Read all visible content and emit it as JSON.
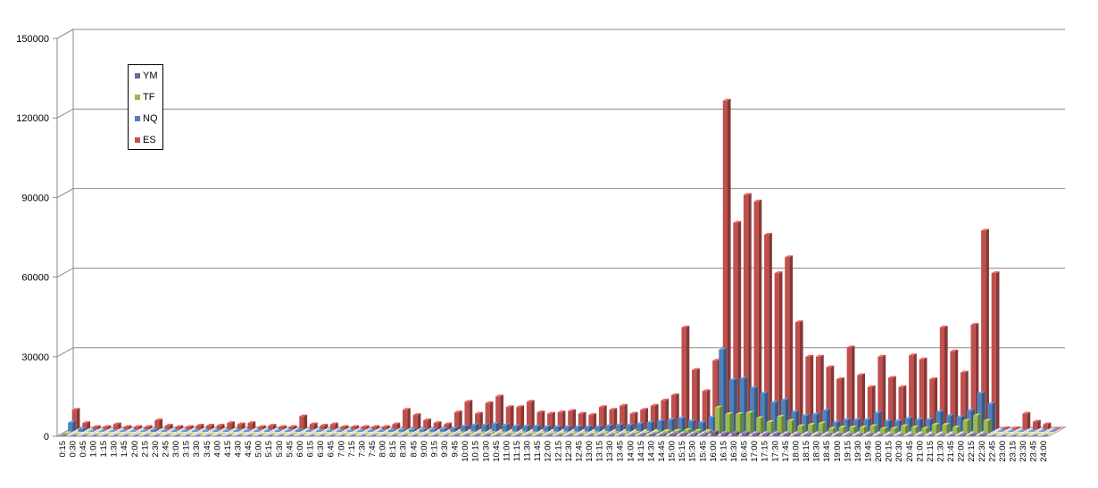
{
  "chart_data": {
    "type": "bar",
    "subtype": "3d-clustered-column",
    "ylim": [
      0,
      150000
    ],
    "yticks": [
      0,
      30000,
      60000,
      90000,
      120000,
      150000
    ],
    "grid": true,
    "legend_position": "top-left",
    "categories": [
      "0:15",
      "0:30",
      "0:45",
      "1:00",
      "1:15",
      "1:30",
      "1:45",
      "2:00",
      "2:15",
      "2:30",
      "2:45",
      "3:00",
      "3:15",
      "3:30",
      "3:45",
      "4:00",
      "4:15",
      "4:30",
      "4:45",
      "5:00",
      "5:15",
      "5:30",
      "5:45",
      "6:00",
      "6:15",
      "6:30",
      "6:45",
      "7:00",
      "7:15",
      "7:30",
      "7:45",
      "8:00",
      "8:15",
      "8:30",
      "8:45",
      "9:00",
      "9:15",
      "9:30",
      "9:45",
      "10:00",
      "10:15",
      "10:30",
      "10:45",
      "11:00",
      "11:15",
      "11:30",
      "11:45",
      "12:00",
      "12:15",
      "12:30",
      "12:45",
      "13:00",
      "13:15",
      "13:30",
      "13:45",
      "14:00",
      "14:15",
      "14:30",
      "14:45",
      "15:00",
      "15:15",
      "15:30",
      "15:45",
      "16:00",
      "16:15",
      "16:30",
      "16:45",
      "17:00",
      "17:15",
      "17:30",
      "17:45",
      "18:00",
      "18:15",
      "18:30",
      "18:45",
      "19:00",
      "19:15",
      "19:30",
      "19:45",
      "20:00",
      "20:15",
      "20:30",
      "20:45",
      "21:00",
      "21:15",
      "21:30",
      "21:45",
      "22:00",
      "22:15",
      "22:30",
      "22:45",
      "23:00",
      "23:15",
      "23:30",
      "23:45",
      "24:00"
    ],
    "series": [
      {
        "name": "YM",
        "color": "#7d60a0",
        "values": [
          200,
          100,
          50,
          50,
          50,
          50,
          50,
          50,
          100,
          50,
          50,
          50,
          50,
          50,
          50,
          50,
          50,
          50,
          50,
          50,
          50,
          50,
          100,
          50,
          50,
          50,
          50,
          50,
          50,
          50,
          50,
          100,
          100,
          100,
          100,
          100,
          100,
          100,
          200,
          200,
          200,
          300,
          200,
          200,
          200,
          200,
          200,
          200,
          200,
          200,
          200,
          200,
          300,
          300,
          300,
          300,
          400,
          500,
          600,
          700,
          800,
          700,
          600,
          1500,
          1000,
          1200,
          1100,
          900,
          800,
          900,
          700,
          500,
          500,
          400,
          400,
          500,
          400,
          400,
          400,
          300,
          300,
          300,
          300,
          300,
          300,
          300,
          300,
          400,
          500,
          500,
          50,
          50,
          50,
          50,
          50,
          50
        ]
      },
      {
        "name": "TF",
        "color": "#98b954",
        "values": [
          300,
          100,
          50,
          50,
          50,
          50,
          50,
          50,
          100,
          50,
          50,
          50,
          50,
          50,
          50,
          50,
          50,
          50,
          50,
          50,
          50,
          50,
          100,
          50,
          50,
          50,
          50,
          50,
          50,
          50,
          50,
          100,
          200,
          200,
          200,
          200,
          200,
          200,
          300,
          300,
          300,
          400,
          300,
          300,
          300,
          300,
          300,
          300,
          300,
          300,
          300,
          300,
          400,
          400,
          400,
          500,
          600,
          800,
          1000,
          1200,
          1500,
          1200,
          1000,
          10000,
          7500,
          7500,
          8000,
          6000,
          4500,
          6500,
          5000,
          3000,
          3500,
          4000,
          2000,
          2500,
          2500,
          2500,
          3000,
          2000,
          2000,
          3000,
          2500,
          2000,
          3500,
          3500,
          2500,
          5000,
          7000,
          5000,
          50,
          50,
          50,
          50,
          50,
          50
        ]
      },
      {
        "name": "NQ",
        "color": "#4f81bd",
        "values": [
          3500,
          1000,
          200,
          200,
          200,
          200,
          200,
          200,
          700,
          300,
          300,
          300,
          300,
          300,
          300,
          300,
          300,
          300,
          300,
          300,
          300,
          300,
          500,
          300,
          300,
          300,
          300,
          300,
          300,
          300,
          300,
          500,
          700,
          800,
          800,
          800,
          1000,
          1200,
          2000,
          2500,
          2500,
          3000,
          2500,
          2000,
          2000,
          2000,
          1800,
          1800,
          1800,
          1800,
          1800,
          1800,
          2200,
          2500,
          2500,
          3000,
          3500,
          4000,
          4500,
          5000,
          4000,
          3500,
          5500,
          31000,
          19500,
          20000,
          16500,
          14500,
          11000,
          12000,
          7500,
          6000,
          6500,
          8000,
          3500,
          4500,
          4500,
          4500,
          7000,
          4000,
          4000,
          5000,
          4500,
          4500,
          7500,
          6000,
          5500,
          8000,
          14500,
          10500,
          200,
          200,
          200,
          200,
          200,
          200
        ]
      },
      {
        "name": "ES",
        "color": "#c0504d",
        "values": [
          7500,
          2500,
          1000,
          1000,
          2000,
          1000,
          1000,
          1000,
          3500,
          1500,
          1000,
          1000,
          1500,
          1500,
          1500,
          2500,
          2000,
          2500,
          1000,
          1500,
          1000,
          1000,
          5000,
          2000,
          1500,
          2000,
          1000,
          1000,
          1000,
          1000,
          1000,
          2000,
          7500,
          5500,
          3500,
          2500,
          2000,
          6500,
          10500,
          6000,
          10000,
          12500,
          8500,
          8500,
          10500,
          6500,
          6000,
          6500,
          7000,
          6000,
          5500,
          8500,
          7500,
          9000,
          6000,
          7500,
          9000,
          11000,
          13000,
          38500,
          22500,
          14500,
          26000,
          124000,
          78000,
          88500,
          86000,
          73500,
          59000,
          65000,
          40500,
          27500,
          27500,
          23500,
          19000,
          31000,
          20500,
          16000,
          27500,
          19500,
          16000,
          28000,
          26500,
          19000,
          38500,
          29500,
          21500,
          39500,
          75000,
          59000,
          500,
          500,
          6000,
          3000,
          2000,
          200
        ]
      }
    ]
  }
}
